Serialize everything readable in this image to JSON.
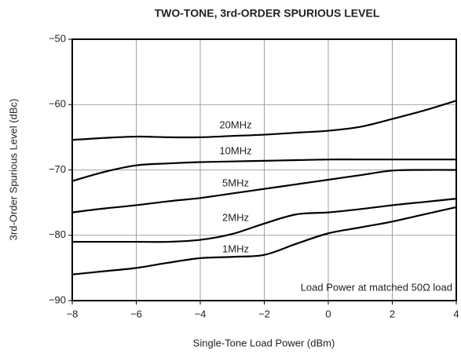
{
  "chart_data": {
    "type": "line",
    "title": "TWO-TONE, 3rd-ORDER SPURIOUS LEVEL",
    "x_label": "Single-Tone Load Power (dBm)",
    "y_label": "3rd-Order Spurious Level (dBc)",
    "annotation": "Load Power at matched 50Ω load",
    "x": [
      -8,
      -7,
      -6,
      -5,
      -4,
      -3,
      -2,
      -1,
      0,
      1,
      2,
      3,
      4
    ],
    "series": [
      {
        "name": "20MHz",
        "color": "#000000",
        "values": [
          -65.4,
          -65.1,
          -64.9,
          -65,
          -65,
          -64.8,
          -64.6,
          -64.3,
          -64,
          -63.4,
          -62.2,
          -60.9,
          -59.4
        ]
      },
      {
        "name": "10MHz",
        "color": "#000000",
        "values": [
          -71.7,
          -70.3,
          -69.3,
          -69,
          -68.8,
          -68.7,
          -68.6,
          -68.5,
          -68.4,
          -68.4,
          -68.4,
          -68.4,
          -68.4
        ]
      },
      {
        "name": "5MHz",
        "color": "#000000",
        "values": [
          -76.5,
          -75.9,
          -75.4,
          -74.8,
          -74.3,
          -73.6,
          -72.9,
          -72.2,
          -71.5,
          -70.8,
          -70.1,
          -70,
          -70
        ]
      },
      {
        "name": "2MHz",
        "color": "#000000",
        "values": [
          -81,
          -81,
          -81,
          -81,
          -80.7,
          -79.8,
          -78.2,
          -76.8,
          -76.5,
          -76,
          -75.4,
          -74.9,
          -74.4
        ]
      },
      {
        "name": "1MHz",
        "color": "#000000",
        "values": [
          -86,
          -85.5,
          -85,
          -84.2,
          -83.5,
          -83.3,
          -83,
          -81.3,
          -79.7,
          -78.8,
          -77.9,
          -76.8,
          -75.7
        ]
      }
    ],
    "xlim": [
      -8,
      4
    ],
    "xticks": [
      {
        "value": -8,
        "label": "−8"
      },
      {
        "value": -6,
        "label": "−6"
      },
      {
        "value": -4,
        "label": "−4"
      },
      {
        "value": -2,
        "label": "−2"
      },
      0,
      2,
      4
    ],
    "ylim": [
      -90,
      -50
    ],
    "yticks": [
      {
        "value": -90,
        "label": "−90"
      },
      {
        "value": -80,
        "label": "−80"
      },
      {
        "value": -70,
        "label": "−70"
      },
      {
        "value": -60,
        "label": "−60"
      },
      {
        "value": -50,
        "label": "−50"
      }
    ],
    "grid": true
  }
}
